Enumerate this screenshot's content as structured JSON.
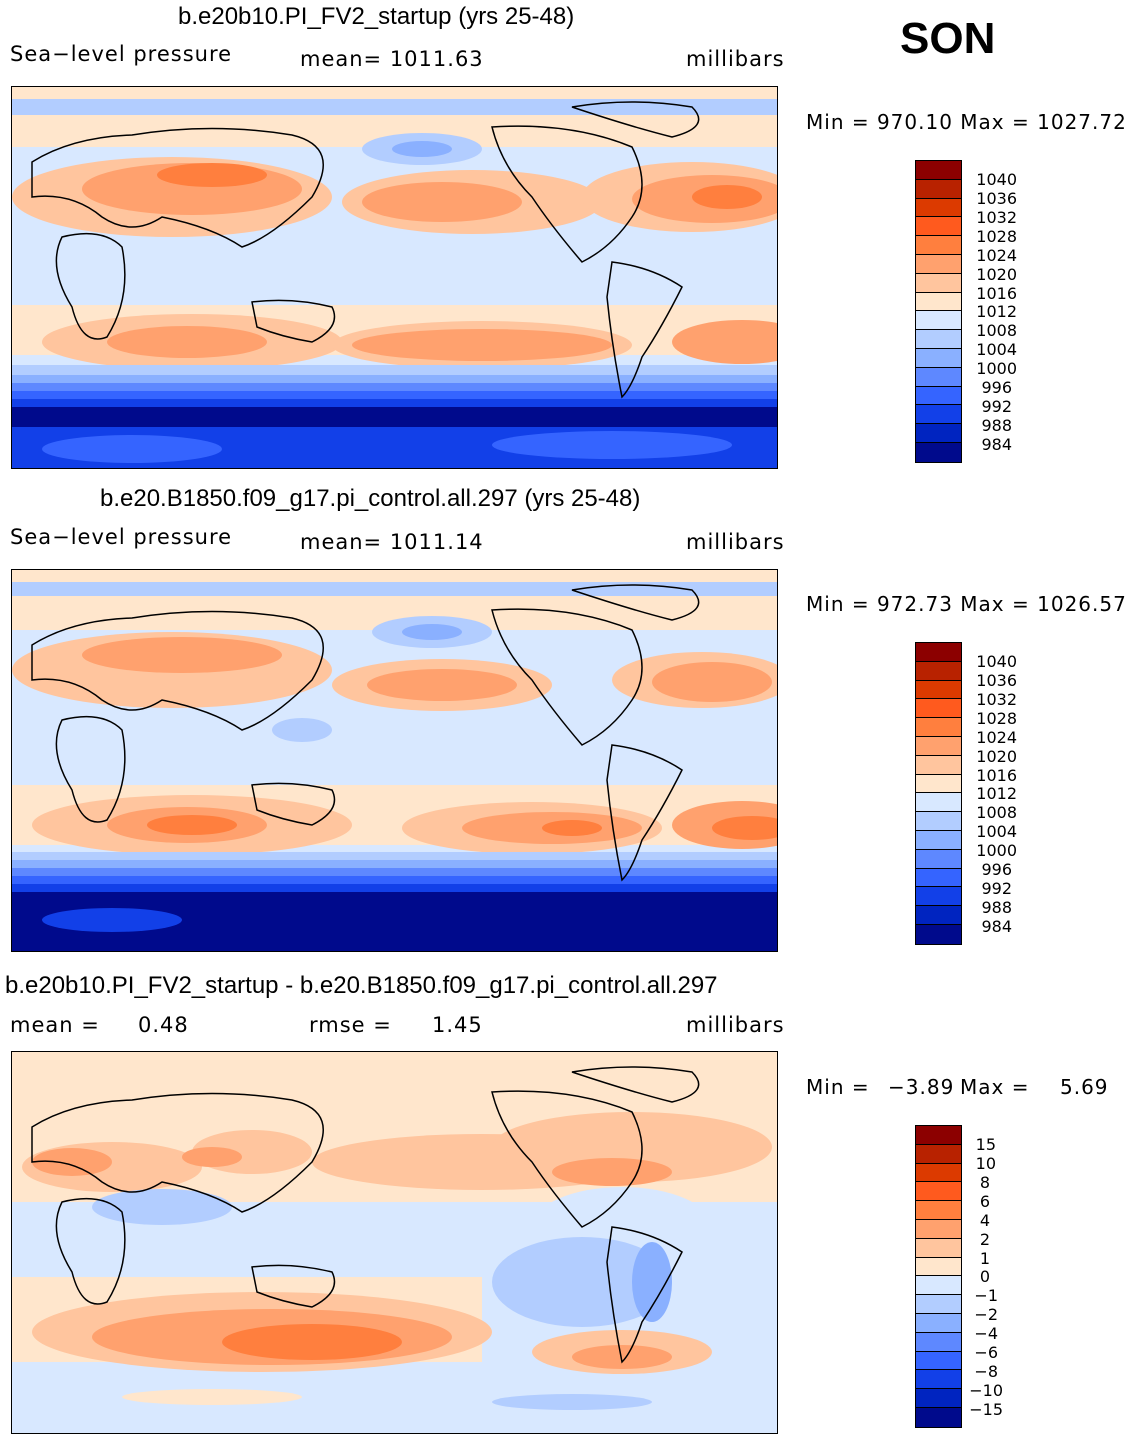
{
  "season": "SON",
  "panels": [
    {
      "title": "b.e20b10.PI_FV2_startup (yrs 25-48)",
      "variable": "Sea−level pressure",
      "mean_text": "mean=  1011.63",
      "units": "millibars",
      "min_max_text": "Min  =  970.10  Max  =  1027.72",
      "legend_labels": [
        "1040",
        "1036",
        "1032",
        "1028",
        "1024",
        "1020",
        "1016",
        "1012",
        "1008",
        "1004",
        "1000",
        "996",
        "992",
        "988",
        "984"
      ]
    },
    {
      "title": "b.e20.B1850.f09_g17.pi_control.all.297 (yrs 25-48)",
      "variable": "Sea−level pressure",
      "mean_text": "mean=  1011.14",
      "units": "millibars",
      "min_max_text": "Min  =  972.73  Max  =  1026.57",
      "legend_labels": [
        "1040",
        "1036",
        "1032",
        "1028",
        "1024",
        "1020",
        "1016",
        "1012",
        "1008",
        "1004",
        "1000",
        "996",
        "992",
        "988",
        "984"
      ]
    },
    {
      "title": "b.e20b10.PI_FV2_startup - b.e20.B1850.f09_g17.pi_control.all.297",
      "mean_label": "mean  =",
      "mean_value": "0.48",
      "rmse_label": "rmse  =",
      "rmse_value": "1.45",
      "units": "millibars",
      "min_label": "Min  =",
      "min_value": "−3.89",
      "max_label": "Max  =",
      "max_value": "5.69",
      "legend_labels": [
        "15",
        "10",
        "8",
        "6",
        "4",
        "2",
        "1",
        "0",
        "−1",
        "−2",
        "−4",
        "−6",
        "−8",
        "−10",
        "−15"
      ]
    }
  ],
  "colors": {
    "legend_ramp": [
      "#8c0000",
      "#b82200",
      "#dc3a00",
      "#ff5a1e",
      "#ff7f3e",
      "#ffa16e",
      "#ffc59e",
      "#ffe6cc",
      "#d8e8ff",
      "#b2cdff",
      "#8ab0ff",
      "#5e88ff",
      "#3564ff",
      "#1240e8",
      "#0024c0",
      "#000a8c"
    ],
    "land_outline": "#000000"
  }
}
